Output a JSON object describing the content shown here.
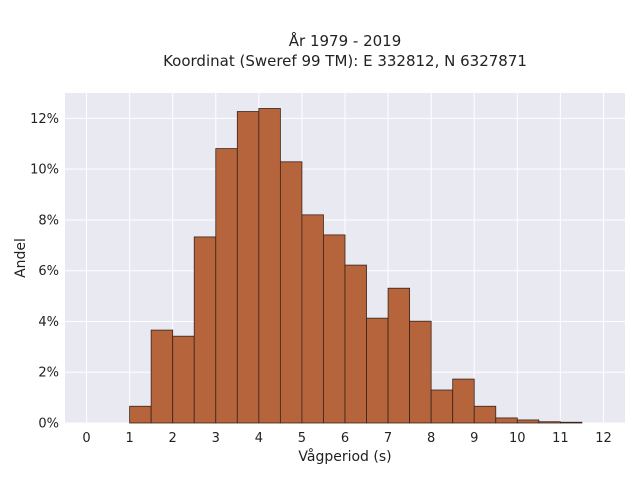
{
  "chart_data": {
    "type": "bar",
    "title_line1": "År 1979 - 2019",
    "title_line2": "Koordinat (Sweref 99 TM): E 332812, N 6327871",
    "xlabel": "Vågperiod (s)",
    "ylabel": "Andel",
    "xlim": [
      -0.5,
      12.5
    ],
    "ylim": [
      0,
      0.13
    ],
    "x_ticks": [
      0,
      1,
      2,
      3,
      4,
      5,
      6,
      7,
      8,
      9,
      10,
      11,
      12
    ],
    "y_ticks": [
      0,
      0.02,
      0.04,
      0.06,
      0.08,
      0.1,
      0.12
    ],
    "y_tick_labels": [
      "0%",
      "2%",
      "4%",
      "6%",
      "8%",
      "10%",
      "12%"
    ],
    "bin_width": 0.5,
    "bins": [
      {
        "x0": 1.0,
        "value": 0.0066
      },
      {
        "x0": 1.5,
        "value": 0.0366
      },
      {
        "x0": 2.0,
        "value": 0.0342
      },
      {
        "x0": 2.5,
        "value": 0.0733
      },
      {
        "x0": 3.0,
        "value": 0.1081
      },
      {
        "x0": 3.5,
        "value": 0.1227
      },
      {
        "x0": 4.0,
        "value": 0.1239
      },
      {
        "x0": 4.5,
        "value": 0.1029
      },
      {
        "x0": 5.0,
        "value": 0.082
      },
      {
        "x0": 5.5,
        "value": 0.0741
      },
      {
        "x0": 6.0,
        "value": 0.0622
      },
      {
        "x0": 6.5,
        "value": 0.0413
      },
      {
        "x0": 7.0,
        "value": 0.0531
      },
      {
        "x0": 7.5,
        "value": 0.0401
      },
      {
        "x0": 8.0,
        "value": 0.013
      },
      {
        "x0": 8.5,
        "value": 0.0173
      },
      {
        "x0": 9.0,
        "value": 0.0066
      },
      {
        "x0": 9.5,
        "value": 0.002
      },
      {
        "x0": 10.0,
        "value": 0.0012
      },
      {
        "x0": 10.5,
        "value": 0.0005
      },
      {
        "x0": 11.0,
        "value": 0.0003
      }
    ],
    "bar_color": "#b5643c",
    "bar_edge_color": "#3a2418",
    "plot_background": "#e9e9f2",
    "grid": true,
    "grid_color": "#ffffff",
    "legend": false
  }
}
